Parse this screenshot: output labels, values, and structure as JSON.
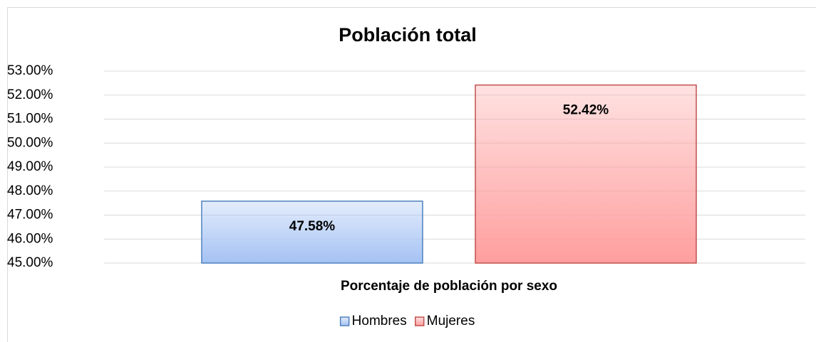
{
  "chart_data": {
    "type": "bar",
    "title": "Población total",
    "xlabel": "Porcentaje de población por sexo",
    "categories": [
      "Porcentaje de población por sexo"
    ],
    "series": [
      {
        "name": "Hombres",
        "color": "#a4c2f4",
        "edgecolor": "#4f81bd",
        "values": [
          47.58
        ],
        "value_labels": [
          "47.58%"
        ]
      },
      {
        "name": "Mujeres",
        "color": "#ff9e9e",
        "edgecolor": "#c0504d",
        "values": [
          52.42
        ],
        "value_labels": [
          "52.42%"
        ]
      }
    ],
    "ylim": [
      45,
      53
    ],
    "yticks": [
      {
        "value": 45,
        "label": "45.00%"
      },
      {
        "value": 46,
        "label": "46.00%"
      },
      {
        "value": 47,
        "label": "47.00%"
      },
      {
        "value": 48,
        "label": "48.00%"
      },
      {
        "value": 49,
        "label": "49.00%"
      },
      {
        "value": 50,
        "label": "50.00%"
      },
      {
        "value": 51,
        "label": "51.00%"
      },
      {
        "value": 52,
        "label": "52.00%"
      },
      {
        "value": 53,
        "label": "53.00%"
      }
    ],
    "grid": true,
    "legend": "bottom"
  }
}
